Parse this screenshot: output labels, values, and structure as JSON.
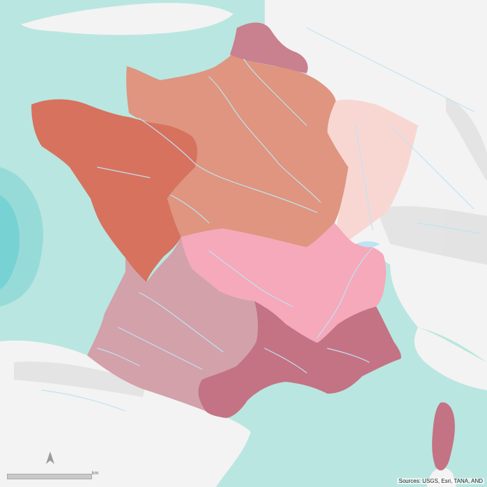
{
  "map": {
    "colors": {
      "sea": "#b9e6e0",
      "sea_deep": "#7fd3d3",
      "land": "#f3f3f3",
      "relief": "#dedede",
      "rivers": "#bfe3f3",
      "region_north": "#c9808f",
      "region_seine": "#df957f",
      "region_loire_west": "#d7725f",
      "region_rhine_meuse": "#f8d7d3",
      "region_rhone": "#f5a9bb",
      "region_adour_garonne": "#d3a1aa",
      "region_mediterranean": "#c47384",
      "region_corsica": "#c47384"
    },
    "regions": [
      "region-north",
      "region-seine",
      "region-loire-west",
      "region-rhine-meuse",
      "region-rhone",
      "region-adour-garonne",
      "region-mediterranean",
      "region-corsica"
    ]
  },
  "scale_bar": {
    "unit": "km"
  },
  "north_arrow": {
    "icon": "north-arrow-icon"
  },
  "attribution": "Sources: USGS, Esri, TANA, AND"
}
